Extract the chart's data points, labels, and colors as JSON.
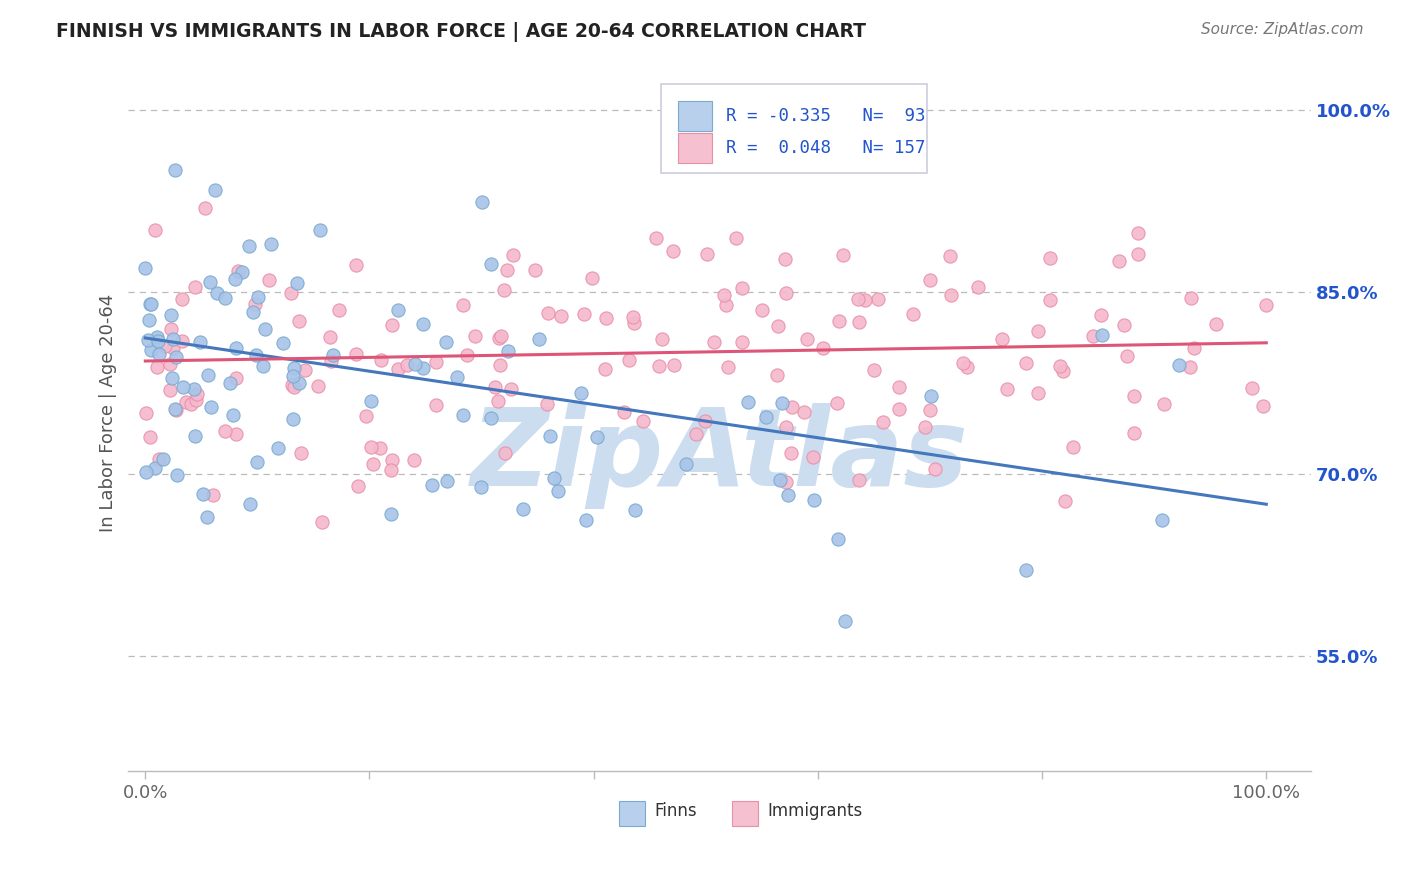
{
  "title": "FINNISH VS IMMIGRANTS IN LABOR FORCE | AGE 20-64 CORRELATION CHART",
  "source_text": "Source: ZipAtlas.com",
  "ylabel": "In Labor Force | Age 20-64",
  "r_finns": -0.335,
  "n_finns": 93,
  "r_immigrants": 0.048,
  "n_immigrants": 157,
  "finns_dot_color": "#a8c4e8",
  "finns_edge_color": "#7aaad0",
  "immigrants_dot_color": "#f5b8cc",
  "immigrants_edge_color": "#e890a8",
  "finns_line_color": "#4477bb",
  "immigrants_line_color": "#dd5577",
  "finns_line_start": 0.812,
  "finns_line_end": 0.675,
  "imm_line_start": 0.793,
  "imm_line_end": 0.808,
  "yticks": [
    0.55,
    0.7,
    0.85,
    1.0
  ],
  "ytick_labels": [
    "55.0%",
    "70.0%",
    "85.0%",
    "100.0%"
  ],
  "ymin": 0.455,
  "ymax": 1.045,
  "xmin": -0.015,
  "xmax": 1.04,
  "background_color": "#ffffff",
  "grid_color": "#bbbbbb",
  "watermark_text": "ZipAtlas",
  "watermark_color": "#ccddf0",
  "legend_finns_color": "#b8d0ec",
  "legend_imm_color": "#f5c0d0",
  "legend_text_color": "#2255cc",
  "legend_border_color": "#ccccdd"
}
